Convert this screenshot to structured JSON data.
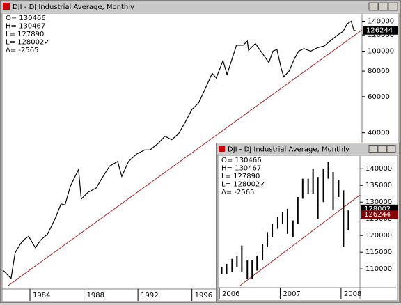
{
  "windows": [
    {
      "title": "DJI - DJ Industrial Average, Monthly",
      "info": [
        "O=  130466",
        "H=  130467",
        "L=  127890",
        "L=  128002✓",
        "Δ=    -2565"
      ],
      "chart_data": {
        "type": "line",
        "log_scale": true,
        "color": "#000000",
        "x": [
          1982.05,
          1982.35,
          1982.6,
          1982.9,
          1983.3,
          1983.6,
          1983.9,
          1984.4,
          1984.8,
          1985.3,
          1985.9,
          1986.3,
          1986.6,
          1987.0,
          1987.6,
          1987.8,
          1988.3,
          1988.9,
          1989.5,
          1989.9,
          1990.5,
          1990.8,
          1991.3,
          1991.9,
          1992.5,
          1992.9,
          1993.5,
          1994.0,
          1994.5,
          1995.0,
          1995.5,
          1996.0,
          1996.5,
          1997.0,
          1997.5,
          1997.8,
          1998.3,
          1998.6,
          1999.0,
          1999.3,
          1999.8,
          2000.1,
          2000.2,
          2000.7,
          2001.2,
          2001.7,
          2002.0,
          2002.3,
          2002.6,
          2002.8,
          2003.2,
          2003.6,
          2003.9,
          2004.3,
          2004.8,
          2005.3,
          2005.8,
          2006.3,
          2006.8,
          2007.2,
          2007.5,
          2007.8,
          2008.0,
          2008.12
        ],
        "values": [
          8500,
          8100,
          7800,
          10400,
          11500,
          12100,
          12500,
          11000,
          12000,
          12800,
          15400,
          18000,
          17800,
          22000,
          26500,
          19000,
          20500,
          21500,
          25000,
          27500,
          29000,
          24500,
          29000,
          31500,
          33000,
          33000,
          35500,
          38500,
          37000,
          39500,
          45000,
          52000,
          56000,
          66000,
          78000,
          74000,
          90000,
          77000,
          93000,
          107000,
          107000,
          112000,
          101000,
          109000,
          98000,
          88000,
          100000,
          102000,
          83000,
          75000,
          80000,
          92000,
          100000,
          103000,
          100000,
          104000,
          106000,
          113000,
          120000,
          125000,
          136000,
          140000,
          126000,
          126244
        ],
        "xlim": [
          1982.04,
          2008.6
        ],
        "ylim": [
          6920,
          152000
        ],
        "xticks": [
          1984,
          1988,
          1992,
          1996
        ],
        "yticks": [
          40000,
          60000,
          80000,
          100000,
          120000,
          140000
        ],
        "trendline": {
          "color": "#b22222",
          "x": [
            1982.4,
            2008.6
          ],
          "values": [
            7200,
            127000
          ]
        },
        "price_tags": [
          126244
        ],
        "price_tag_colors": [
          "#000000"
        ]
      }
    },
    {
      "title": "DJI - DJ Industrial Average, Monthly",
      "info": [
        "O=  130466",
        "H=  130467",
        "L=  127890",
        "L=  128002✓",
        "Δ=    -2565"
      ],
      "chart_data": {
        "type": "ohlc",
        "log_scale": false,
        "color": "#000000",
        "x": [
          2006.04,
          2006.12,
          2006.21,
          2006.29,
          2006.37,
          2006.46,
          2006.54,
          2006.62,
          2006.71,
          2006.79,
          2006.87,
          2006.96,
          2007.04,
          2007.12,
          2007.21,
          2007.29,
          2007.37,
          2007.46,
          2007.54,
          2007.62,
          2007.71,
          2007.79,
          2007.87,
          2007.96,
          2008.04,
          2008.12
        ],
        "high": [
          110500,
          111500,
          113000,
          114000,
          117000,
          112500,
          112500,
          114000,
          117500,
          121000,
          123500,
          125500,
          127000,
          128000,
          124500,
          131500,
          137000,
          137000,
          140000,
          137500,
          140000,
          142000,
          139000,
          136500,
          133500,
          127500
        ],
        "low": [
          108500,
          108500,
          109000,
          110500,
          109000,
          107000,
          107000,
          109500,
          112500,
          116500,
          119500,
          122000,
          123500,
          120500,
          119500,
          123500,
          131000,
          132500,
          132500,
          125000,
          130000,
          137000,
          127500,
          131500,
          116500,
          121500
        ],
        "xlim": [
          2006.0,
          2008.31
        ],
        "ylim": [
          104400,
          143800
        ],
        "xticks": [
          2006,
          2007,
          2008
        ],
        "yticks": [
          110000,
          115000,
          120000,
          125000,
          130000,
          135000,
          140000
        ],
        "trendline": {
          "color": "#b22222",
          "x": [
            2006.34,
            2008.31
          ],
          "values": [
            105000,
            132100
          ]
        },
        "price_tags": [
          128002,
          126244
        ],
        "price_tag_colors": [
          "#000000",
          "#8b0000"
        ]
      }
    }
  ]
}
